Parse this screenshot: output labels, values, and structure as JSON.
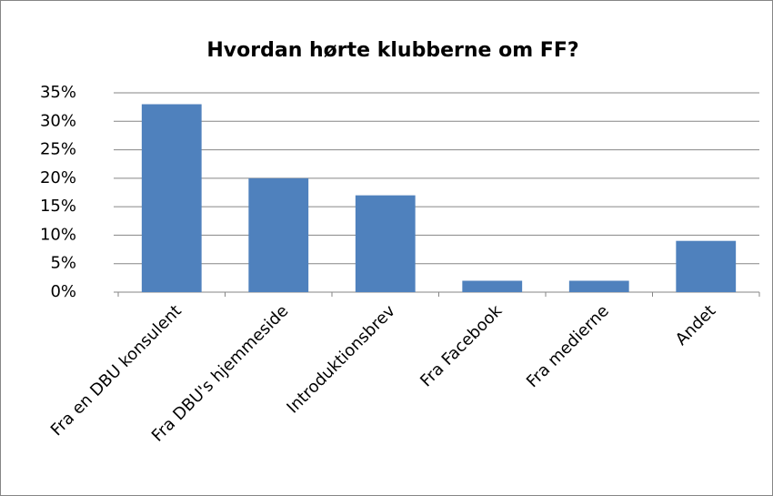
{
  "chart_data": {
    "type": "bar",
    "title": "Hvordan hørte klubberne om FF?",
    "categories": [
      "Fra en DBU konsulent",
      "Fra DBU's hjemmeside",
      "Introduktionsbrev",
      "Fra Facebook",
      "Fra medierne",
      "Andet"
    ],
    "values": [
      33,
      20,
      17,
      2,
      2,
      9
    ],
    "color": "#4f81bd",
    "ylim": [
      0,
      35
    ],
    "yticks": [
      {
        "value": 0,
        "label": "0%"
      },
      {
        "value": 5,
        "label": "5%"
      },
      {
        "value": 10,
        "label": "10%"
      },
      {
        "value": 15,
        "label": "15%"
      },
      {
        "value": 20,
        "label": "20%"
      },
      {
        "value": 25,
        "label": "25%"
      },
      {
        "value": 30,
        "label": "30%"
      },
      {
        "value": 35,
        "label": "35%"
      }
    ],
    "grid": true
  }
}
